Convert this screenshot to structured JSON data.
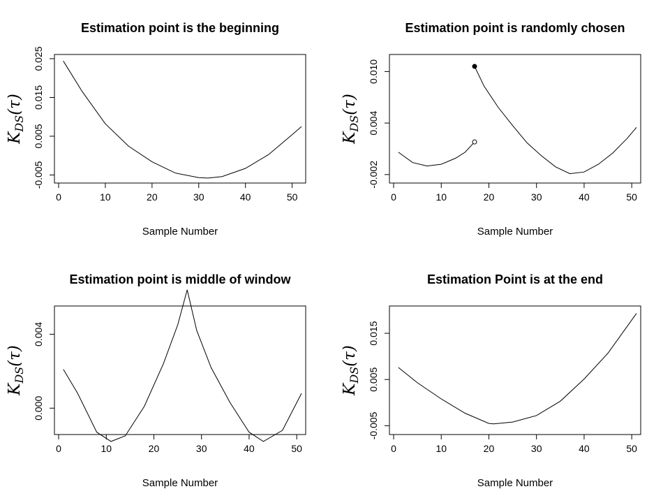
{
  "chart_data": [
    {
      "type": "line",
      "title": "Estimation point is the beginning",
      "xlabel": "Sample Number",
      "ylabel": "K_DS(τ)",
      "xlim": [
        0,
        52
      ],
      "ylim": [
        -0.006,
        0.025
      ],
      "xticks": [
        0,
        10,
        20,
        30,
        40,
        50
      ],
      "yticks": [
        -0.005,
        0.005,
        0.015,
        0.025
      ],
      "ytick_labels": [
        "-0.005",
        "0.005",
        "0.015",
        "0.025"
      ],
      "series": [
        {
          "x": [
            1,
            5,
            10,
            15,
            20,
            25,
            30,
            32,
            35,
            40,
            45,
            50,
            52
          ],
          "y": [
            0.0244,
            0.0166,
            0.0082,
            0.0024,
            -0.0016,
            -0.0045,
            -0.0057,
            -0.0058,
            -0.0054,
            -0.0033,
            0.0003,
            0.0054,
            0.0075
          ]
        }
      ]
    },
    {
      "type": "line",
      "title": "Estimation point is randomly chosen",
      "xlabel": "Sample Number",
      "ylabel": "K_DS(τ)",
      "xlim": [
        0,
        51
      ],
      "ylim": [
        -0.0025,
        0.0115
      ],
      "xticks": [
        0,
        10,
        20,
        30,
        40,
        50
      ],
      "yticks": [
        -0.002,
        0.004,
        0.01
      ],
      "ytick_labels": [
        "-0.002",
        "0.004",
        "0.010"
      ],
      "series": [
        {
          "x": [
            1,
            4,
            7,
            10,
            13,
            15,
            17
          ],
          "y": [
            0.0006,
            -0.0006,
            -0.001,
            -0.0008,
            -0.0001,
            0.0006,
            0.0018
          ]
        },
        {
          "x": [
            17,
            19,
            22,
            25,
            28,
            31,
            34,
            37,
            40,
            43,
            46,
            49,
            51
          ],
          "y": [
            0.0106,
            0.0083,
            0.0058,
            0.0037,
            0.0017,
            0.0002,
            -0.0011,
            -0.0019,
            -0.0017,
            -0.0008,
            0.0005,
            0.0022,
            0.0035
          ]
        }
      ],
      "points": [
        {
          "x": 17,
          "y": 0.0106,
          "style": "filled"
        },
        {
          "x": 17,
          "y": 0.0018,
          "style": "open"
        }
      ]
    },
    {
      "type": "line",
      "title": "Estimation point is middle of window",
      "xlabel": "Sample Number",
      "ylabel": "K_DS(τ)",
      "xlim": [
        0,
        51
      ],
      "ylim": [
        -0.0012,
        0.0053
      ],
      "xticks": [
        0,
        10,
        20,
        30,
        40,
        50
      ],
      "yticks": [
        0,
        0.004
      ],
      "ytick_labels": [
        "0.000",
        "0.004"
      ],
      "series": [
        {
          "x": [
            1,
            4,
            8,
            11,
            14,
            18,
            22,
            25,
            27,
            29,
            32,
            36,
            40,
            43,
            47,
            51
          ],
          "y": [
            0.0021,
            0.0008,
            -0.0013,
            -0.0018,
            -0.0015,
            0.0001,
            0.0024,
            0.0045,
            0.0064,
            0.0042,
            0.0022,
            0.0003,
            -0.0013,
            -0.0018,
            -0.0012,
            0.0008
          ]
        }
      ]
    },
    {
      "type": "line",
      "title": "Estimation Point is at the end",
      "xlabel": "Sample Number",
      "ylabel": "K_DS(τ)",
      "xlim": [
        0,
        51
      ],
      "ylim": [
        -0.006,
        0.02
      ],
      "xticks": [
        0,
        10,
        20,
        30,
        40,
        50
      ],
      "yticks": [
        -0.005,
        0.005,
        0.015
      ],
      "ytick_labels": [
        "-0.005",
        "0.005",
        "0.015"
      ],
      "series": [
        {
          "x": [
            1,
            5,
            10,
            15,
            20,
            21,
            25,
            30,
            35,
            40,
            45,
            51
          ],
          "y": [
            0.0076,
            0.0043,
            0.0008,
            -0.0023,
            -0.0045,
            -0.0046,
            -0.0042,
            -0.0028,
            0.0003,
            0.0051,
            0.0107,
            0.0193
          ]
        }
      ]
    }
  ]
}
